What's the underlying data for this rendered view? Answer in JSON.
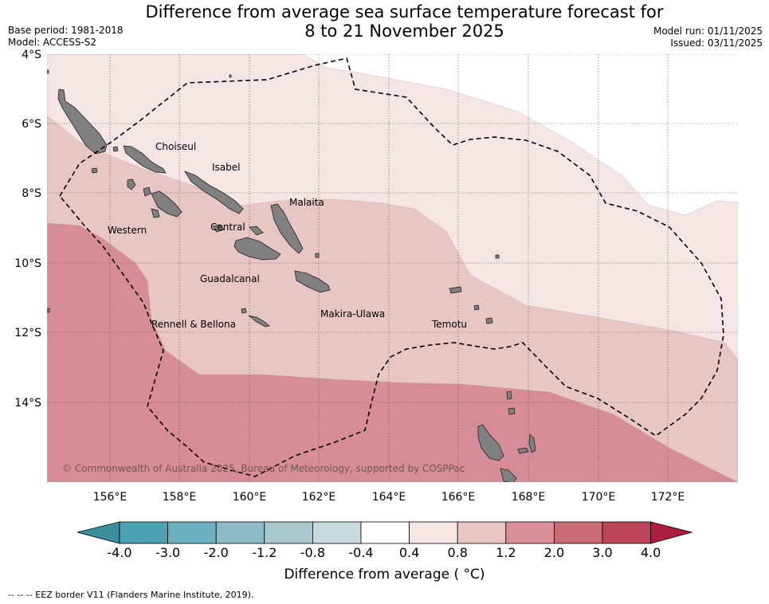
{
  "title": {
    "line1": "Difference from average sea surface temperature forecast for",
    "line2": "8 to 21 November 2025"
  },
  "meta": {
    "base_period": "Base period: 1981-2018",
    "model": "Model: ACCESS-S2",
    "model_run": "Model run: 01/11/2025",
    "issued": "Issued: 03/11/2025"
  },
  "map": {
    "lat_labels": [
      "4°S",
      "6°S",
      "8°S",
      "10°S",
      "12°S",
      "14°S"
    ],
    "lon_labels": [
      "156°E",
      "158°E",
      "160°E",
      "162°E",
      "164°E",
      "166°E",
      "168°E",
      "170°E",
      "172°E"
    ],
    "region_labels": [
      "Choiseul",
      "Isabel",
      "Malaita",
      "Western",
      "Central",
      "Guadalcanal",
      "Rennell & Bellona",
      "Makira-Ulawa",
      "Temotu"
    ],
    "copyright": "© Commonwealth of Australia 2025, Bureau of Meteorology, supported by COSPPac"
  },
  "colorbar": {
    "ticks": [
      "-4.0",
      "-3.0",
      "-2.0",
      "-1.2",
      "-0.8",
      "-0.4",
      "0.4",
      "0.8",
      "1.2",
      "2.0",
      "3.0",
      "4.0"
    ],
    "colors": [
      "#4aa0b1",
      "#6cafbe",
      "#8dbcc6",
      "#a8c8cd",
      "#c8dadb",
      "#ffffff",
      "#f5e6e5",
      "#e8c6c3",
      "#d88f97",
      "#ca6a75",
      "#bd4555"
    ],
    "under_color": "#3b8e9c",
    "over_color": "#ac1f3c",
    "label": "Difference from average ( °C)"
  },
  "footnote": "--  --  -- EEZ border V11 (Flanders Marine Institute, 2019).",
  "colors": {
    "anomaly_0_4_to_0_8": "#f5e6e5",
    "anomaly_0_8_to_1_2": "#e8c6c3",
    "anomaly_1_2_to_2_0": "#d88f97",
    "land": "#808080"
  }
}
